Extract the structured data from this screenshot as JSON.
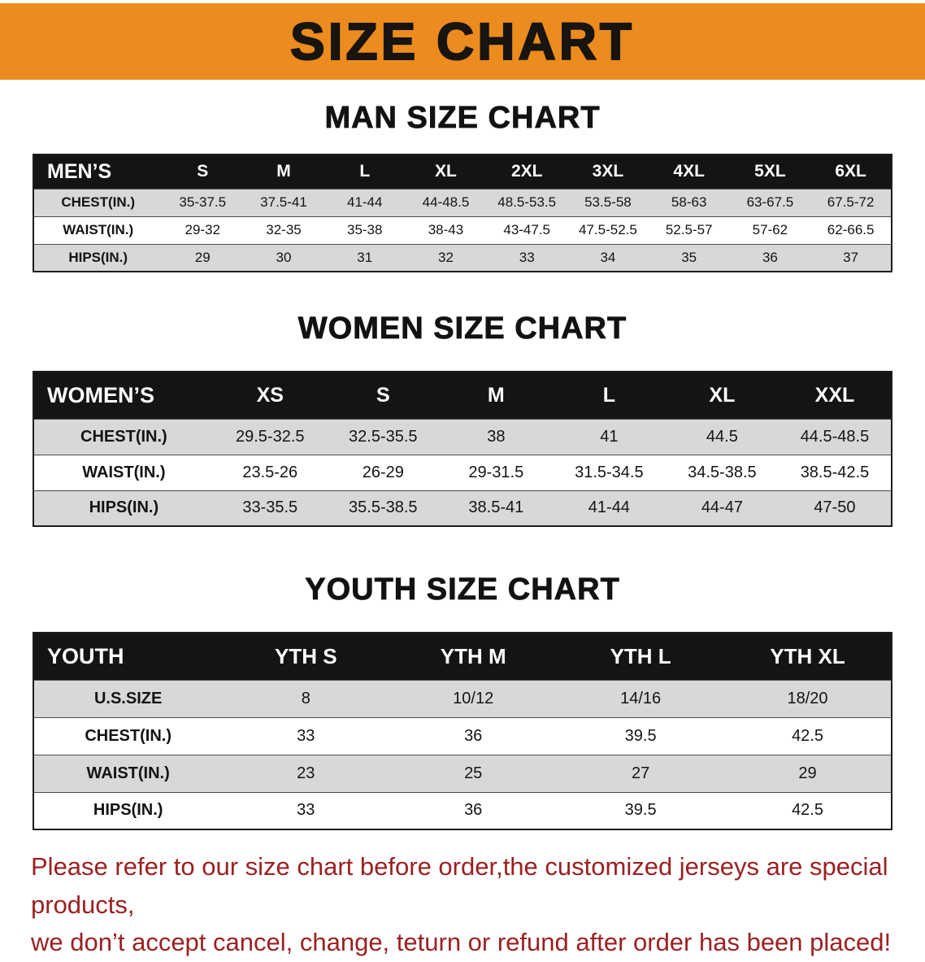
{
  "banner": {
    "title": "SIZE CHART"
  },
  "colors": {
    "banner_bg": "#EC8B1E",
    "header_bg": "#141414",
    "stripe": "#D8D8D8",
    "footer_text": "#9B2121"
  },
  "sections": [
    {
      "heading": "MAN SIZE CHART",
      "header": [
        "MEN’S",
        "S",
        "M",
        "L",
        "XL",
        "2XL",
        "3XL",
        "4XL",
        "5XL",
        "6XL"
      ],
      "rows": [
        [
          "CHEST(IN.)",
          "35-37.5",
          "37.5-41",
          "41-44",
          "44-48.5",
          "48.5-53.5",
          "53.5-58",
          "58-63",
          "63-67.5",
          "67.5-72"
        ],
        [
          "WAIST(IN.)",
          "29-32",
          "32-35",
          "35-38",
          "38-43",
          "43-47.5",
          "47.5-52.5",
          "52.5-57",
          "57-62",
          "62-66.5"
        ],
        [
          "HIPS(IN.)",
          "29",
          "30",
          "31",
          "32",
          "33",
          "34",
          "35",
          "36",
          "37"
        ]
      ]
    },
    {
      "heading": "WOMEN SIZE CHART",
      "header": [
        "WOMEN’S",
        "XS",
        "S",
        "M",
        "L",
        "XL",
        "XXL"
      ],
      "rows": [
        [
          "CHEST(IN.)",
          "29.5-32.5",
          "32.5-35.5",
          "38",
          "41",
          "44.5",
          "44.5-48.5"
        ],
        [
          "WAIST(IN.)",
          "23.5-26",
          "26-29",
          "29-31.5",
          "31.5-34.5",
          "34.5-38.5",
          "38.5-42.5"
        ],
        [
          "HIPS(IN.)",
          "33-35.5",
          "35.5-38.5",
          "38.5-41",
          "41-44",
          "44-47",
          "47-50"
        ]
      ]
    },
    {
      "heading": "YOUTH SIZE CHART",
      "header": [
        "YOUTH",
        "YTH S",
        "YTH M",
        "YTH L",
        "YTH XL"
      ],
      "rows": [
        [
          "U.S.SIZE",
          "8",
          "10/12",
          "14/16",
          "18/20"
        ],
        [
          "CHEST(IN.)",
          "33",
          "36",
          "39.5",
          "42.5"
        ],
        [
          "WAIST(IN.)",
          "23",
          "25",
          "27",
          "29"
        ],
        [
          "HIPS(IN.)",
          "33",
          "36",
          "39.5",
          "42.5"
        ]
      ]
    }
  ],
  "footer": {
    "line1": "Please refer to our size chart before order,the customized jerseys are special products,",
    "line2": "we don’t accept cancel, change, teturn or refund after order has been placed!"
  }
}
